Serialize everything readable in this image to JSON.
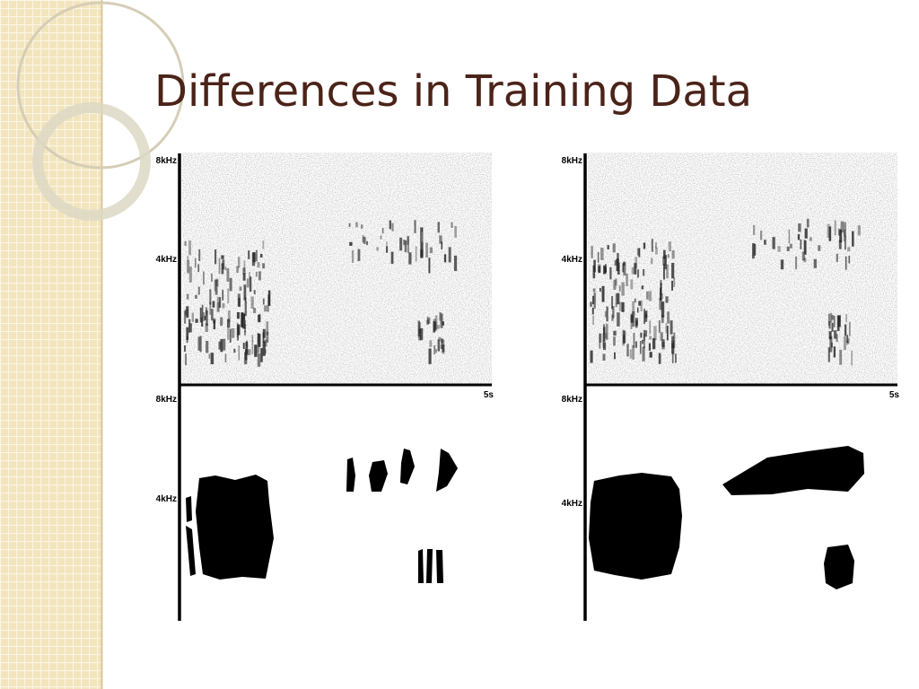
{
  "slide": {
    "title": "Differences in Training Data",
    "panels": [
      {
        "spectrogram_axis": {
          "top": "8kHz",
          "mid": "4kHz"
        },
        "time_label": "5s",
        "mask_axis": {
          "top": "8kHz",
          "mid": "4kHz"
        }
      },
      {
        "spectrogram_axis": {
          "top": "8kHz",
          "mid": "4kHz"
        },
        "time_label": "5s",
        "mask_axis": {
          "top": "8kHz",
          "mid": "4kHz"
        }
      }
    ]
  }
}
